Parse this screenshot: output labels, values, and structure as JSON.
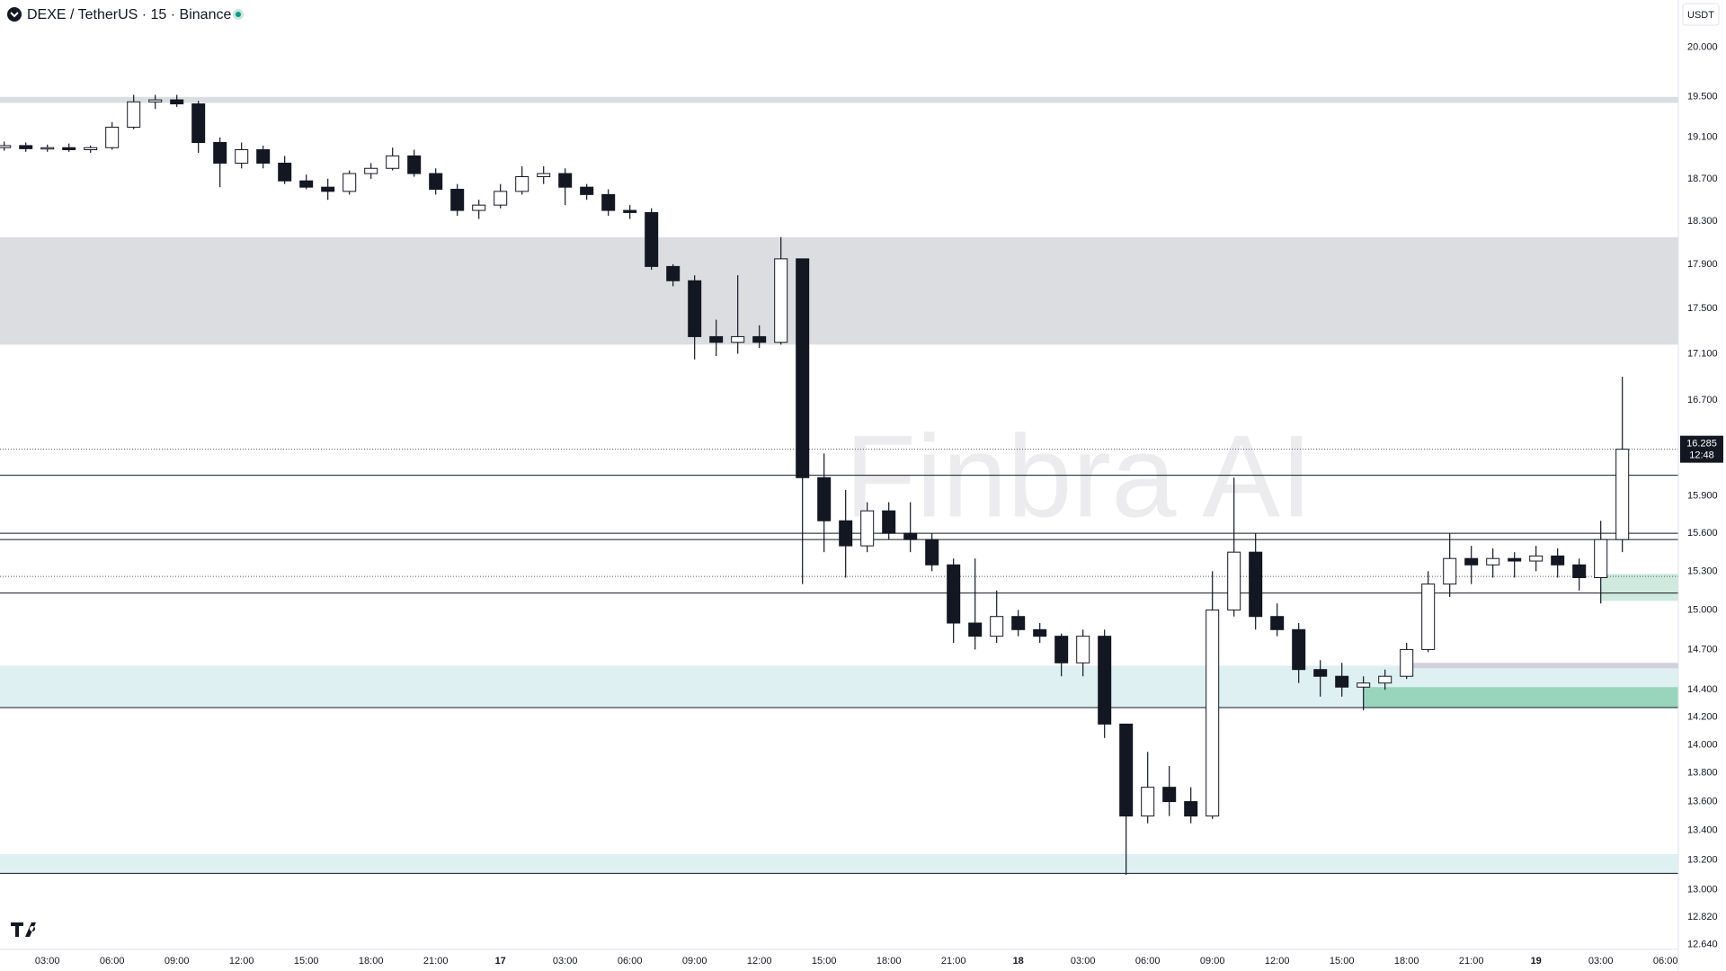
{
  "chart_data": {
    "type": "candlestick",
    "title": "DEXE / TetherUS · 15 · Binance",
    "currency": "USDT",
    "watermark": "Finbra AI",
    "countdown": "12:48",
    "log": true,
    "ylim": [
      12.61,
      20.49
    ],
    "yticks": [
      {
        "value": 20.0,
        "label": "20.000"
      },
      {
        "value": 19.5,
        "label": "19.500"
      },
      {
        "value": 19.1,
        "label": "19.100"
      },
      {
        "value": 18.7,
        "label": "18.700"
      },
      {
        "value": 18.3,
        "label": "18.300"
      },
      {
        "value": 17.9,
        "label": "17.900"
      },
      {
        "value": 17.5,
        "label": "17.500"
      },
      {
        "value": 17.1,
        "label": "17.100"
      },
      {
        "value": 16.7,
        "label": "16.700"
      },
      {
        "value": 15.9,
        "label": "15.900"
      },
      {
        "value": 15.6,
        "label": "15.600"
      },
      {
        "value": 15.3,
        "label": "15.300"
      },
      {
        "value": 15.0,
        "label": "15.000"
      },
      {
        "value": 14.7,
        "label": "14.700"
      },
      {
        "value": 14.4,
        "label": "14.400"
      },
      {
        "value": 14.2,
        "label": "14.200"
      },
      {
        "value": 14.0,
        "label": "14.000"
      },
      {
        "value": 13.8,
        "label": "13.800"
      },
      {
        "value": 13.6,
        "label": "13.600"
      },
      {
        "value": 13.4,
        "label": "13.400"
      },
      {
        "value": 13.2,
        "label": "13.200"
      },
      {
        "value": 13.0,
        "label": "13.000"
      },
      {
        "value": 12.82,
        "label": "12.820"
      },
      {
        "value": 12.64,
        "label": "12.640"
      }
    ],
    "categories": [
      null,
      null,
      "03:00",
      null,
      null,
      "06:00",
      null,
      null,
      "09:00",
      null,
      null,
      "12:00",
      null,
      null,
      "15:00",
      null,
      null,
      "18:00",
      null,
      null,
      "21:00",
      null,
      null,
      "17",
      null,
      null,
      "03:00",
      null,
      null,
      "06:00",
      null,
      null,
      "09:00",
      null,
      null,
      "12:00",
      null,
      null,
      "15:00",
      null,
      null,
      "18:00",
      null,
      null,
      "21:00",
      null,
      null,
      "18",
      null,
      null,
      "03:00",
      null,
      null,
      "06:00",
      null,
      null,
      "09:00",
      null,
      null,
      "12:00",
      null,
      null,
      "15:00",
      null,
      null,
      "18:00",
      null,
      null,
      "21:00",
      null,
      null,
      "19",
      null,
      null,
      "03:00",
      null,
      null,
      "06:00"
    ],
    "values": [
      [
        19.0,
        19.06,
        18.97,
        19.02
      ],
      [
        19.02,
        19.05,
        18.96,
        18.99
      ],
      [
        18.99,
        19.03,
        18.96,
        19.0
      ],
      [
        19.0,
        19.04,
        18.96,
        18.98
      ],
      [
        18.98,
        19.02,
        18.95,
        19.0
      ],
      [
        19.0,
        19.25,
        18.98,
        19.2
      ],
      [
        19.2,
        19.52,
        19.18,
        19.45
      ],
      [
        19.45,
        19.52,
        19.38,
        19.47
      ],
      [
        19.47,
        19.52,
        19.4,
        19.43
      ],
      [
        19.43,
        19.46,
        18.95,
        19.05
      ],
      [
        19.05,
        19.1,
        18.62,
        18.85
      ],
      [
        18.85,
        19.05,
        18.8,
        18.98
      ],
      [
        18.98,
        19.02,
        18.8,
        18.85
      ],
      [
        18.85,
        18.92,
        18.65,
        18.68
      ],
      [
        18.68,
        18.74,
        18.6,
        18.62
      ],
      [
        18.62,
        18.7,
        18.5,
        18.58
      ],
      [
        18.58,
        18.78,
        18.55,
        18.75
      ],
      [
        18.75,
        18.85,
        18.7,
        18.8
      ],
      [
        18.8,
        19.0,
        18.78,
        18.92
      ],
      [
        18.92,
        18.98,
        18.72,
        18.75
      ],
      [
        18.75,
        18.8,
        18.55,
        18.6
      ],
      [
        18.6,
        18.65,
        18.35,
        18.4
      ],
      [
        18.4,
        18.5,
        18.32,
        18.45
      ],
      [
        18.45,
        18.65,
        18.42,
        18.58
      ],
      [
        18.58,
        18.82,
        18.55,
        18.72
      ],
      [
        18.72,
        18.82,
        18.65,
        18.75
      ],
      [
        18.75,
        18.8,
        18.45,
        18.62
      ],
      [
        18.62,
        18.65,
        18.5,
        18.55
      ],
      [
        18.55,
        18.6,
        18.35,
        18.4
      ],
      [
        18.4,
        18.45,
        18.32,
        18.38
      ],
      [
        18.38,
        18.42,
        17.85,
        17.88
      ],
      [
        17.88,
        17.9,
        17.7,
        17.75
      ],
      [
        17.75,
        17.8,
        17.05,
        17.25
      ],
      [
        17.25,
        17.4,
        17.08,
        17.2
      ],
      [
        17.2,
        17.8,
        17.1,
        17.25
      ],
      [
        17.25,
        17.35,
        17.15,
        17.2
      ],
      [
        17.2,
        18.15,
        17.18,
        17.95
      ],
      [
        17.95,
        17.95,
        15.2,
        16.05
      ],
      [
        16.05,
        16.25,
        15.45,
        15.7
      ],
      [
        15.7,
        15.95,
        15.25,
        15.5
      ],
      [
        15.5,
        15.85,
        15.45,
        15.78
      ],
      [
        15.78,
        15.85,
        15.55,
        15.6
      ],
      [
        15.6,
        15.85,
        15.45,
        15.55
      ],
      [
        15.55,
        15.6,
        15.3,
        15.35
      ],
      [
        15.35,
        15.4,
        14.75,
        14.9
      ],
      [
        14.9,
        15.4,
        14.7,
        14.8
      ],
      [
        14.8,
        15.15,
        14.75,
        14.95
      ],
      [
        14.95,
        15.0,
        14.8,
        14.85
      ],
      [
        14.85,
        14.9,
        14.75,
        14.8
      ],
      [
        14.8,
        14.82,
        14.5,
        14.6
      ],
      [
        14.6,
        14.85,
        14.5,
        14.8
      ],
      [
        14.8,
        14.85,
        14.05,
        14.15
      ],
      [
        14.15,
        14.15,
        13.1,
        13.5
      ],
      [
        13.5,
        13.95,
        13.45,
        13.7
      ],
      [
        13.7,
        13.85,
        13.5,
        13.6
      ],
      [
        13.6,
        13.7,
        13.45,
        13.5
      ],
      [
        13.5,
        15.3,
        13.48,
        15.0
      ],
      [
        15.0,
        16.05,
        14.95,
        15.45
      ],
      [
        15.45,
        15.6,
        14.85,
        14.95
      ],
      [
        14.95,
        15.05,
        14.8,
        14.85
      ],
      [
        14.85,
        14.9,
        14.45,
        14.55
      ],
      [
        14.55,
        14.62,
        14.35,
        14.5
      ],
      [
        14.5,
        14.6,
        14.35,
        14.42
      ],
      [
        14.42,
        14.5,
        14.25,
        14.45
      ],
      [
        14.45,
        14.55,
        14.4,
        14.5
      ],
      [
        14.5,
        14.75,
        14.48,
        14.7
      ],
      [
        14.7,
        15.3,
        14.68,
        15.2
      ],
      [
        15.2,
        15.6,
        15.1,
        15.4
      ],
      [
        15.4,
        15.5,
        15.2,
        15.35
      ],
      [
        15.35,
        15.48,
        15.25,
        15.4
      ],
      [
        15.4,
        15.45,
        15.25,
        15.38
      ],
      [
        15.38,
        15.5,
        15.3,
        15.42
      ],
      [
        15.42,
        15.48,
        15.25,
        15.35
      ],
      [
        15.35,
        15.4,
        15.15,
        15.25
      ],
      [
        15.25,
        15.7,
        15.05,
        15.55
      ],
      [
        15.55,
        16.9,
        15.45,
        16.285
      ],
      null,
      null
    ],
    "zones": [
      {
        "from": 19.44,
        "to": 19.5,
        "color": "#dcdde0"
      },
      {
        "from": 17.18,
        "to": 18.15,
        "color": "#dcdde0"
      },
      {
        "from": 14.27,
        "to": 14.58,
        "color": "#dff0f3"
      },
      {
        "from": 13.11,
        "to": 13.24,
        "color": "#dff0f3"
      },
      {
        "from": 15.07,
        "to": 15.28,
        "color": "#cfe9df",
        "start": 74
      },
      {
        "from": 14.27,
        "to": 14.42,
        "color": "#99d5bd",
        "start": 63
      },
      {
        "from": 14.56,
        "to": 14.6,
        "color": "#d2d0dc",
        "start": 65
      }
    ],
    "levels": [
      {
        "value": 16.07,
        "style": "solid"
      },
      {
        "value": 15.6,
        "style": "solid"
      },
      {
        "value": 15.55,
        "style": "solid"
      },
      {
        "value": 15.26,
        "style": "dotted"
      },
      {
        "value": 15.13,
        "style": "solid"
      },
      {
        "value": 14.27,
        "style": "solid"
      },
      {
        "value": 13.11,
        "style": "solid"
      },
      {
        "value": 16.285,
        "style": "dotted"
      }
    ]
  }
}
